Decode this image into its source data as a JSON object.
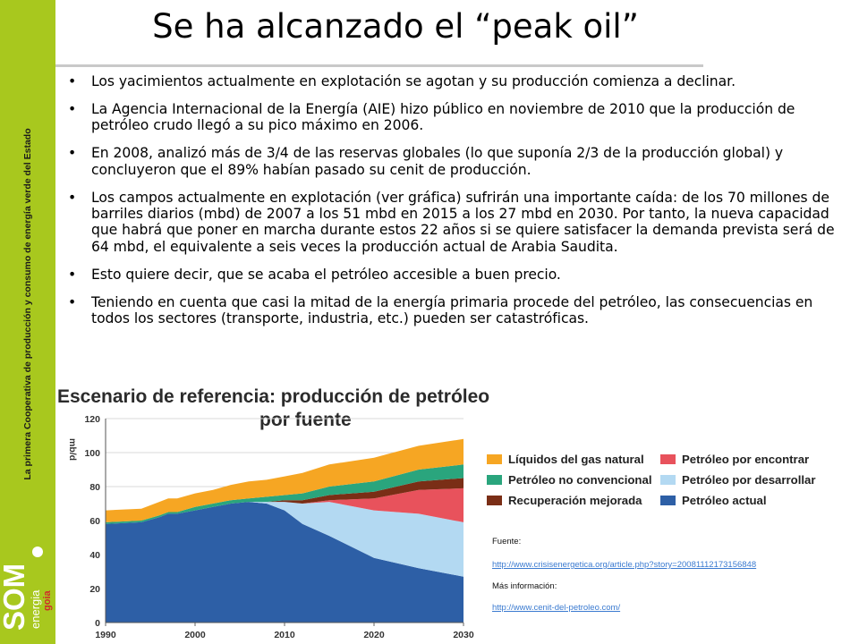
{
  "sidebar": {
    "vertical_text": "La primera Cooperativa de producción y consumo de energía verde del Estado",
    "logo_text": "SOM energia",
    "logo_sub": "goia"
  },
  "title": "Se ha alcanzado el “peak oil”",
  "bullets": [
    "Los yacimientos actualmente en explotación se agotan y su producción comienza a declinar.",
    "La Agencia Internacional de la Energía (AIE) hizo público en noviembre de 2010 que la producción de petróleo crudo llegó a su pico máximo en 2006.",
    "En 2008, analizó más de 3/4 de las reservas globales (lo que suponía 2/3 de la producción global) y concluyeron que el 89% habían pasado su cenit de producción.",
    "Los campos actualmente en explotación (ver gráfica) sufrirán una importante caída: de los 70 millones de barriles diarios (mbd) de 2007 a los 51 mbd en 2015 a los 27 mbd en 2030. Por tanto, la nueva capacidad que habrá que poner en marcha durante estos 22 años si se quiere satisfacer la demanda prevista será de 64 mbd, el equivalente a seis veces la producción actual de Arabia Saudita.",
    "Esto quiere decir, que se acaba el petróleo accesible a buen precio.",
    "Teniendo en cuenta que casi la mitad de la energía primaria procede del petróleo, las consecuencias  en todos los sectores (transporte, industria, etc.) pueden ser catastróficas."
  ],
  "bullet_glyph": "•",
  "source": {
    "fuente_label": "Fuente:",
    "fuente_link": "http://www.crisisenergetica.org/article.php?story=20081112173156848",
    "mas_label": "Más información:",
    "mas_link": "http://www.cenit-del-petroleo.com/"
  },
  "chart_data": {
    "type": "area",
    "title_line1": "Escenario de referencia: producción de petróleo",
    "title_line2": "por fuente",
    "ylabel": "mb/d",
    "xlabel": "",
    "xlim": [
      1990,
      2030
    ],
    "ylim": [
      0,
      120
    ],
    "yticks": [
      0,
      20,
      40,
      60,
      80,
      100,
      120
    ],
    "xticks": [
      1990,
      2000,
      2010,
      2020,
      2030
    ],
    "x": [
      1990,
      1994,
      1996,
      1997,
      1998,
      2000,
      2002,
      2004,
      2006,
      2008,
      2010,
      2012,
      2015,
      2020,
      2025,
      2030
    ],
    "series": [
      {
        "name": "Petróleo actual",
        "color": "#2d5fa6",
        "values": [
          58,
          59,
          62,
          64,
          64,
          66,
          68,
          70,
          71,
          70,
          66,
          58,
          51,
          38,
          32,
          27
        ]
      },
      {
        "name": "Petróleo por desarrollar",
        "color": "#b3d9f2",
        "values": [
          0,
          0,
          0,
          0,
          0,
          0,
          0,
          0,
          0,
          1,
          5,
          12,
          20,
          28,
          32,
          32
        ]
      },
      {
        "name": "Petróleo por encontrar",
        "color": "#e8525c",
        "values": [
          0,
          0,
          0,
          0,
          0,
          0,
          0,
          0,
          0,
          0,
          0,
          0,
          1,
          7,
          14,
          20
        ]
      },
      {
        "name": "Recuperación mejorada",
        "color": "#7a2e16",
        "values": [
          0,
          0,
          0,
          0,
          0,
          0,
          0,
          0,
          0,
          0,
          1,
          2,
          3,
          4,
          5,
          6
        ]
      },
      {
        "name": "Petróleo no convencional",
        "color": "#2aa57d",
        "values": [
          1,
          1,
          1,
          1,
          1,
          2,
          2,
          2,
          2,
          3,
          3,
          4,
          5,
          6,
          7,
          8
        ]
      },
      {
        "name": "Líquidos del gas natural",
        "color": "#f6a623",
        "values": [
          7,
          7,
          8,
          8,
          8,
          8,
          8,
          9,
          10,
          10,
          11,
          12,
          13,
          14,
          14,
          15
        ]
      }
    ],
    "legend": [
      {
        "label": "Líquidos del gas natural",
        "color": "#f6a623"
      },
      {
        "label": "Petróleo por encontrar",
        "color": "#e8525c"
      },
      {
        "label": "Petróleo no convencional",
        "color": "#2aa57d"
      },
      {
        "label": "Petróleo por desarrollar",
        "color": "#b3d9f2"
      },
      {
        "label": "Recuperación mejorada",
        "color": "#7a2e16"
      },
      {
        "label": "Petróleo actual",
        "color": "#2d5fa6"
      }
    ],
    "legend_position": "right",
    "grid": true
  }
}
